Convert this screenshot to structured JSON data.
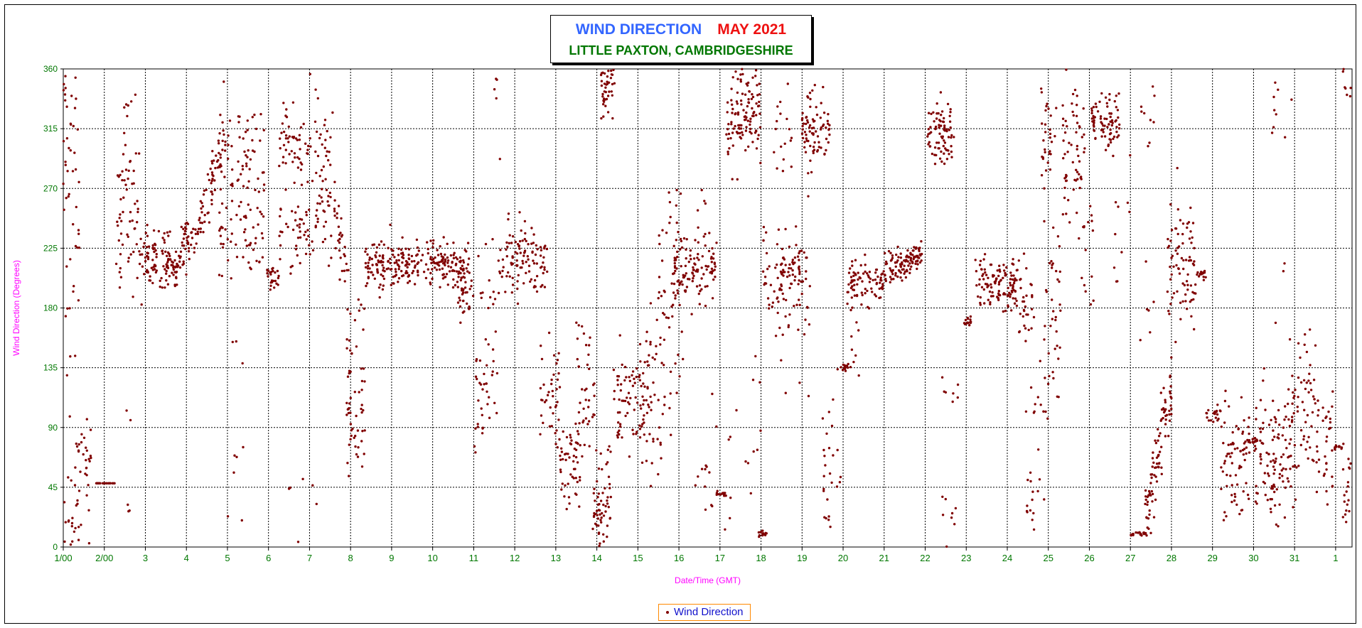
{
  "colors": {
    "title_main": "#3366ff",
    "title_month": "#ee1111",
    "subtitle": "#007700",
    "axis_text": "#007700",
    "axis_label": "#ff00ff",
    "marker": "#800000",
    "legend_border": "#ff8800",
    "legend_text": "#1111cc"
  },
  "chart_data": {
    "type": "scatter",
    "title": "WIND DIRECTION",
    "title_month": "MAY 2021",
    "subtitle": "LITTLE PAXTON, CAMBRIDGESHIRE",
    "xlabel": "Date/Time (GMT)",
    "ylabel": "Wind Direction (Degrees)",
    "ylim": [
      0,
      360
    ],
    "xlim": [
      1,
      32.4
    ],
    "y_ticks": [
      "0",
      "45",
      "90",
      "135",
      "180",
      "225",
      "270",
      "315",
      "360"
    ],
    "x_ticks": [
      "1/00",
      "2/00",
      "3",
      "4",
      "5",
      "6",
      "7",
      "8",
      "9",
      "10",
      "11",
      "12",
      "13",
      "14",
      "15",
      "16",
      "17",
      "18",
      "19",
      "20",
      "21",
      "22",
      "23",
      "24",
      "25",
      "26",
      "27",
      "28",
      "29",
      "30",
      "31",
      "1"
    ],
    "grid": true,
    "legend": "bottom-center",
    "series": [
      {
        "name": "Wind Direction",
        "color": "#800000",
        "segments": [
          {
            "t": [
              1.0,
              1.4
            ],
            "c": [
              20,
              300,
              340
            ],
            "s": 140,
            "n": 60
          },
          {
            "t": [
              1.3,
              1.7
            ],
            "c": [
              55,
              62
            ],
            "s": 18,
            "n": 30
          },
          {
            "t": [
              1.0,
              1.5
            ],
            "c": [
              10
            ],
            "s": 10,
            "n": 10
          },
          {
            "t": [
              1.8,
              2.25
            ],
            "c": [
              48
            ],
            "s": 0,
            "n": 25
          },
          {
            "t": [
              2.25,
              2.85
            ],
            "c": [
              230,
              290
            ],
            "s": 28,
            "n": 60
          },
          {
            "t": [
              2.5,
              2.65
            ],
            "c": [
              35,
              100,
              330
            ],
            "s": 8,
            "n": 8
          },
          {
            "t": [
              2.85,
              3.6
            ],
            "c": [
              220
            ],
            "s": 12,
            "n": 80
          },
          {
            "t": [
              3.5,
              3.85
            ],
            "c": [
              210
            ],
            "s": 6,
            "n": 40
          },
          {
            "t": [
              3.85,
              4.25
            ],
            "c": [
              228
            ],
            "s": 10,
            "n": 40
          },
          {
            "t": [
              4.25,
              4.9
            ],
            "r": [
              240,
              300
            ],
            "s": 10,
            "n": 60
          },
          {
            "t": [
              4.8,
              5.9
            ],
            "c": [
              295,
              240
            ],
            "s": 25,
            "n": 120
          },
          {
            "t": [
              5.0,
              5.4
            ],
            "c": [
              60,
              150,
              30
            ],
            "s": 10,
            "n": 8
          },
          {
            "t": [
              5.9,
              6.25
            ],
            "c": [
              205
            ],
            "s": 5,
            "n": 25
          },
          {
            "t": [
              6.25,
              7.0
            ],
            "c": [
              300,
              240
            ],
            "s": 15,
            "n": 90
          },
          {
            "t": [
              6.3,
              7.2
            ],
            "c": [
              40,
              15,
              340
            ],
            "s": 20,
            "n": 12
          },
          {
            "t": [
              7.0,
              7.6
            ],
            "c": [
              295,
              250
            ],
            "s": 20,
            "n": 60
          },
          {
            "t": [
              7.6,
              7.95
            ],
            "r": [
              250,
              200
            ],
            "s": 12,
            "n": 30
          },
          {
            "t": [
              7.9,
              8.35
            ],
            "c": [
              110,
              85,
              160
            ],
            "s": 18,
            "n": 60
          },
          {
            "t": [
              8.35,
              10.9
            ],
            "c": [
              212
            ],
            "s": 9,
            "n": 260
          },
          {
            "t": [
              10.6,
              11.0
            ],
            "c": [
              195
            ],
            "s": 10,
            "n": 30
          },
          {
            "t": [
              11.0,
              11.6
            ],
            "c": [
              125,
              100,
              200
            ],
            "s": 18,
            "n": 50
          },
          {
            "t": [
              11.3,
              11.7
            ],
            "c": [
              300,
              330,
              360
            ],
            "s": 10,
            "n": 5
          },
          {
            "t": [
              11.6,
              12.8
            ],
            "c": [
              208,
              225
            ],
            "s": 12,
            "n": 110
          },
          {
            "t": [
              12.6,
              13.1
            ],
            "c": [
              110,
              95,
              140
            ],
            "s": 12,
            "n": 40
          },
          {
            "t": [
              13.1,
              13.6
            ],
            "c": [
              70,
              55
            ],
            "s": 14,
            "n": 50
          },
          {
            "t": [
              13.5,
              13.95
            ],
            "c": [
              100,
              85,
              150
            ],
            "s": 12,
            "n": 40
          },
          {
            "t": [
              13.9,
              14.35
            ],
            "c": [
              40,
              20
            ],
            "s": 18,
            "n": 60
          },
          {
            "t": [
              14.1,
              14.45
            ],
            "c": [
              340,
              355
            ],
            "s": 14,
            "n": 40
          },
          {
            "t": [
              14.4,
              15.3
            ],
            "c": [
              100,
              125
            ],
            "s": 15,
            "n": 80
          },
          {
            "t": [
              15.1,
              15.6
            ],
            "c": [
              105,
              75,
              150
            ],
            "s": 15,
            "n": 40
          },
          {
            "t": [
              15.5,
              16.1
            ],
            "c": [
              190,
              230,
              130
            ],
            "s": 25,
            "n": 60
          },
          {
            "t": [
              15.9,
              16.9
            ],
            "c": [
              200,
              215
            ],
            "s": 12,
            "n": 100
          },
          {
            "t": [
              16.4,
              16.95
            ],
            "c": [
              60,
              40,
              120,
              250
            ],
            "s": 15,
            "n": 20
          },
          {
            "t": [
              16.9,
              17.15
            ],
            "c": [
              40
            ],
            "s": 1,
            "n": 15
          },
          {
            "t": [
              17.15,
              18.0
            ],
            "c": [
              320,
              335
            ],
            "s": 15,
            "n": 110
          },
          {
            "t": [
              17.1,
              18.0
            ],
            "c": [
              20,
              50,
              110,
              280
            ],
            "s": 20,
            "n": 20
          },
          {
            "t": [
              17.9,
              18.15
            ],
            "c": [
              10
            ],
            "s": 2,
            "n": 12
          },
          {
            "t": [
              18.05,
              19.2
            ],
            "c": [
              210,
              195
            ],
            "s": 15,
            "n": 100
          },
          {
            "t": [
              18.3,
              19.2
            ],
            "c": [
              280,
              320,
              150
            ],
            "s": 25,
            "n": 40
          },
          {
            "t": [
              19.0,
              19.7
            ],
            "c": [
              322,
              310
            ],
            "s": 12,
            "n": 70
          },
          {
            "t": [
              19.5,
              20.0
            ],
            "c": [
              60,
              30,
              100
            ],
            "s": 25,
            "n": 25
          },
          {
            "t": [
              19.85,
              20.15
            ],
            "c": [
              135
            ],
            "s": 1,
            "n": 15
          },
          {
            "t": [
              20.1,
              21.0
            ],
            "c": [
              200
            ],
            "s": 10,
            "n": 80
          },
          {
            "t": [
              20.1,
              20.4
            ],
            "c": [
              170,
              140
            ],
            "s": 10,
            "n": 12
          },
          {
            "t": [
              21.0,
              21.95
            ],
            "r": [
              205,
              222
            ],
            "s": 6,
            "n": 110
          },
          {
            "t": [
              22.05,
              22.7
            ],
            "c": [
              320,
              300
            ],
            "s": 10,
            "n": 80
          },
          {
            "t": [
              22.4,
              22.8
            ],
            "c": [
              15,
              30,
              120
            ],
            "s": 8,
            "n": 15
          },
          {
            "t": [
              22.95,
              23.15
            ],
            "c": [
              170
            ],
            "s": 2,
            "n": 15
          },
          {
            "t": [
              23.2,
              24.25
            ],
            "c": [
              200,
              195
            ],
            "s": 10,
            "n": 120
          },
          {
            "t": [
              24.25,
              24.65
            ],
            "c": [
              195,
              185
            ],
            "s": 15,
            "n": 30
          },
          {
            "t": [
              24.4,
              24.9
            ],
            "c": [
              90,
              120,
              40
            ],
            "s": 20,
            "n": 25
          },
          {
            "t": [
              24.8,
              25.2
            ],
            "c": [
              320,
              300
            ],
            "s": 18,
            "n": 30
          },
          {
            "t": [
              24.9,
              25.3
            ],
            "c": [
              140,
              190,
              220
            ],
            "s": 25,
            "n": 40
          },
          {
            "t": [
              25.35,
              25.9
            ],
            "c": [
              310,
              285
            ],
            "s": 22,
            "n": 60
          },
          {
            "t": [
              25.8,
              26.1
            ],
            "c": [
              250,
              200
            ],
            "s": 10,
            "n": 15
          },
          {
            "t": [
              26.05,
              26.75
            ],
            "c": [
              318
            ],
            "s": 10,
            "n": 80
          },
          {
            "t": [
              26.6,
              27.0
            ],
            "c": [
              230,
              200,
              270
            ],
            "s": 20,
            "n": 10
          },
          {
            "t": [
              27.0,
              27.4
            ],
            "c": [
              10
            ],
            "s": 1,
            "n": 20
          },
          {
            "t": [
              27.2,
              27.6
            ],
            "c": [
              180,
              330,
              350
            ],
            "s": 20,
            "n": 15
          },
          {
            "t": [
              27.35,
              28.0
            ],
            "r": [
              20,
              120
            ],
            "s": 15,
            "n": 90
          },
          {
            "t": [
              27.9,
              28.6
            ],
            "c": [
              200,
              225
            ],
            "s": 20,
            "n": 80
          },
          {
            "t": [
              28.6,
              28.85
            ],
            "c": [
              205
            ],
            "s": 2,
            "n": 15
          },
          {
            "t": [
              28.85,
              29.2
            ],
            "c": [
              100
            ],
            "s": 4,
            "n": 20
          },
          {
            "t": [
              29.2,
              29.9
            ],
            "c": [
              85,
              70,
              40
            ],
            "s": 15,
            "n": 70
          },
          {
            "t": [
              29.8,
              30.1
            ],
            "c": [
              80
            ],
            "s": 1,
            "n": 15
          },
          {
            "t": [
              30.0,
              30.8
            ],
            "c": [
              80,
              60
            ],
            "s": 20,
            "n": 90
          },
          {
            "t": [
              30.4,
              31.0
            ],
            "c": [
              10,
              330,
              190,
              50
            ],
            "s": 18,
            "n": 15
          },
          {
            "t": [
              30.8,
              31.6
            ],
            "c": [
              75,
              100,
              120
            ],
            "s": 20,
            "n": 80
          },
          {
            "t": [
              31.5,
              31.95
            ],
            "c": [
              60,
              90
            ],
            "s": 20,
            "n": 30
          },
          {
            "t": [
              31.95,
              32.15
            ],
            "c": [
              75
            ],
            "s": 1,
            "n": 12
          },
          {
            "t": [
              32.15,
              32.4
            ],
            "c": [
              55,
              30,
              360
            ],
            "s": 12,
            "n": 25
          }
        ]
      }
    ]
  }
}
